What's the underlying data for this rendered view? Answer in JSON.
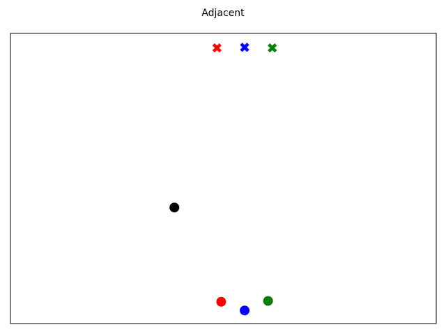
{
  "chart_data": {
    "type": "scatter",
    "title": "Adjacent",
    "xlabel": "",
    "ylabel": "",
    "xlim": [
      0,
      10
    ],
    "ylim": [
      0,
      10
    ],
    "show_ticks": false,
    "grid": false,
    "series": [
      {
        "marker": "x",
        "points": [
          {
            "x": 4.85,
            "y": 9.5,
            "color": "#ff0000"
          },
          {
            "x": 5.5,
            "y": 9.52,
            "color": "#0000ff"
          },
          {
            "x": 6.15,
            "y": 9.5,
            "color": "#008000"
          }
        ]
      },
      {
        "marker": "circle",
        "points": [
          {
            "x": 3.85,
            "y": 4.0,
            "color": "#000000"
          },
          {
            "x": 4.95,
            "y": 0.75,
            "color": "#ff0000"
          },
          {
            "x": 5.5,
            "y": 0.45,
            "color": "#0000ff"
          },
          {
            "x": 6.05,
            "y": 0.78,
            "color": "#008000"
          }
        ]
      }
    ]
  }
}
